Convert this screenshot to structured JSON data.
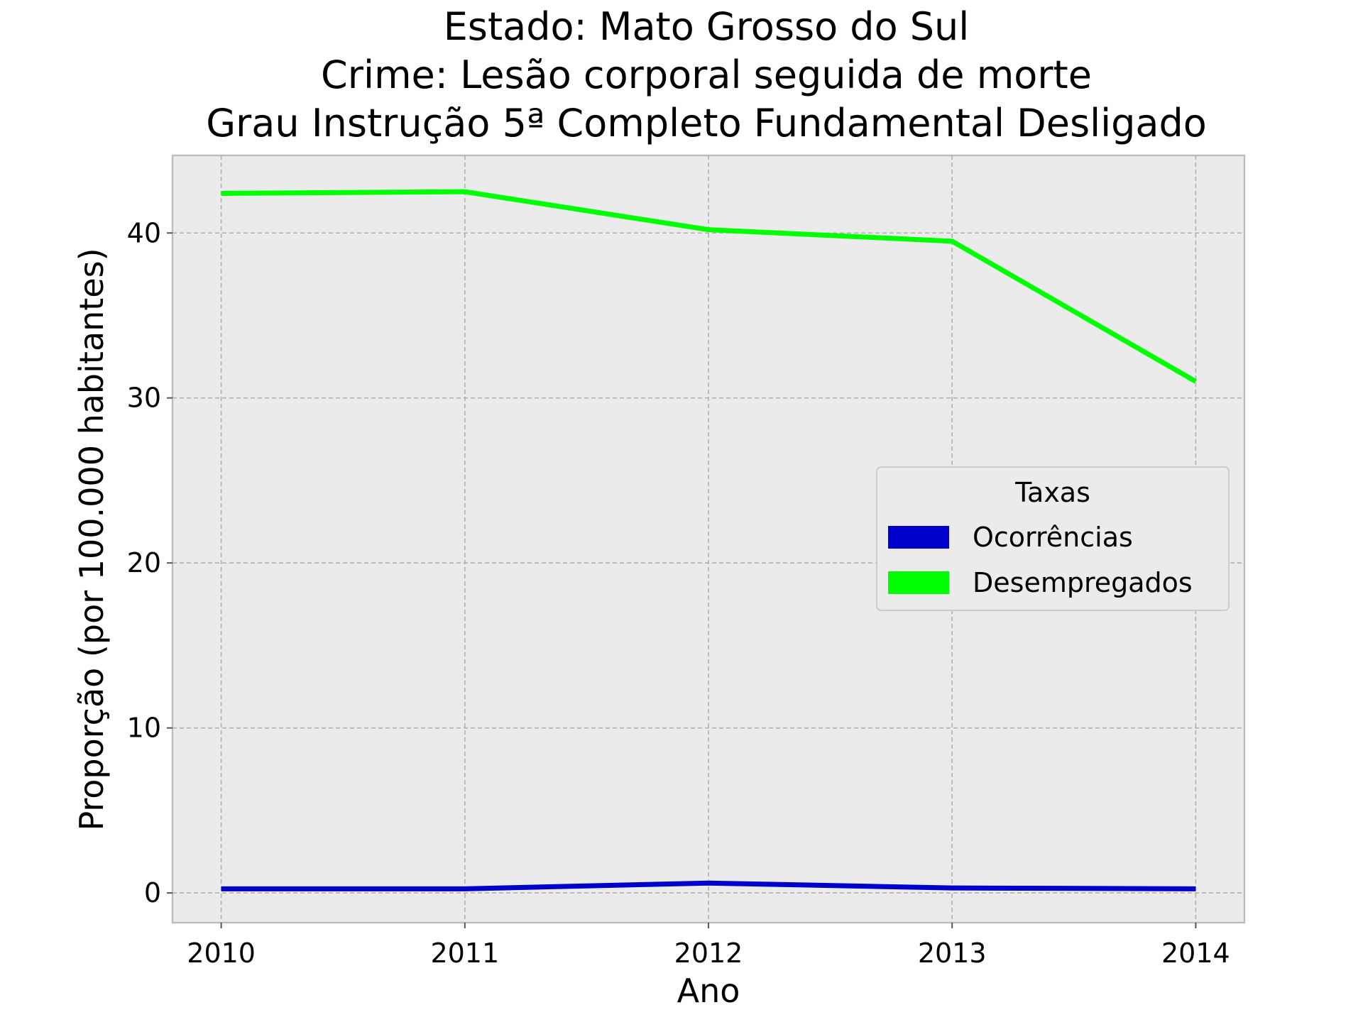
{
  "chart_data": {
    "type": "line",
    "title_lines": [
      "Estado: Mato Grosso do Sul",
      "Crime: Lesão corporal seguida de morte",
      "Grau Instrução  5ª Completo Fundamental   Desligado"
    ],
    "xlabel": "Ano",
    "ylabel": "Proporção (por 100.000 habitantes)",
    "x": [
      2010,
      2011,
      2012,
      2013,
      2014
    ],
    "x_tick_labels": [
      "2010",
      "2011",
      "2012",
      "2013",
      "2014"
    ],
    "y_ticks": [
      0,
      10,
      20,
      30,
      40
    ],
    "y_tick_labels": [
      "0",
      "10",
      "20",
      "30",
      "40"
    ],
    "xlim": [
      2009.8,
      2014.2
    ],
    "ylim": [
      -1.8,
      44.7
    ],
    "grid": true,
    "background": "#ebebeb",
    "legend": {
      "title": "Taxas",
      "placement": "center-right"
    },
    "series": [
      {
        "name": "Ocorrências",
        "color": "#0000cc",
        "values": [
          0.25,
          0.25,
          0.6,
          0.3,
          0.25
        ]
      },
      {
        "name": "Desempregados",
        "color": "#00ff00",
        "values": [
          42.4,
          42.5,
          40.2,
          39.5,
          31.0
        ]
      }
    ]
  }
}
